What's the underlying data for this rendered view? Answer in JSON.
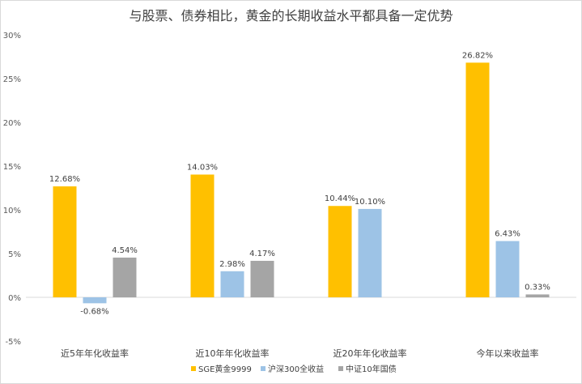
{
  "chart_data": {
    "type": "bar",
    "title": "与股票、债券相比，黄金的长期收益水平都具备一定优势",
    "categories": [
      "近5年年化收益率",
      "近10年年化收益率",
      "近20年年化收益率",
      "今年以来收益率"
    ],
    "series": [
      {
        "name": "SGE黄金9999",
        "color": "#FFC000",
        "values": [
          12.68,
          14.03,
          10.44,
          26.82
        ],
        "labels": [
          "12.68%",
          "14.03%",
          "10.44%",
          "26.82%"
        ]
      },
      {
        "name": "沪深300全收益",
        "color": "#9DC3E6",
        "values": [
          -0.68,
          2.98,
          10.1,
          6.43
        ],
        "labels": [
          "-0.68%",
          "2.98%",
          "10.10%",
          "6.43%"
        ]
      },
      {
        "name": "中证10年国债",
        "color": "#A5A5A5",
        "values": [
          4.54,
          4.17,
          null,
          0.33
        ],
        "labels": [
          "4.54%",
          "4.17%",
          "",
          "0.33%"
        ]
      }
    ],
    "ylim": [
      -5,
      30
    ],
    "yticks": [
      "-5%",
      "0%",
      "5%",
      "10%",
      "15%",
      "20%",
      "25%",
      "30%"
    ],
    "ytick_values": [
      -5,
      0,
      5,
      10,
      15,
      20,
      25,
      30
    ],
    "grid": false,
    "legend": "bottom"
  }
}
